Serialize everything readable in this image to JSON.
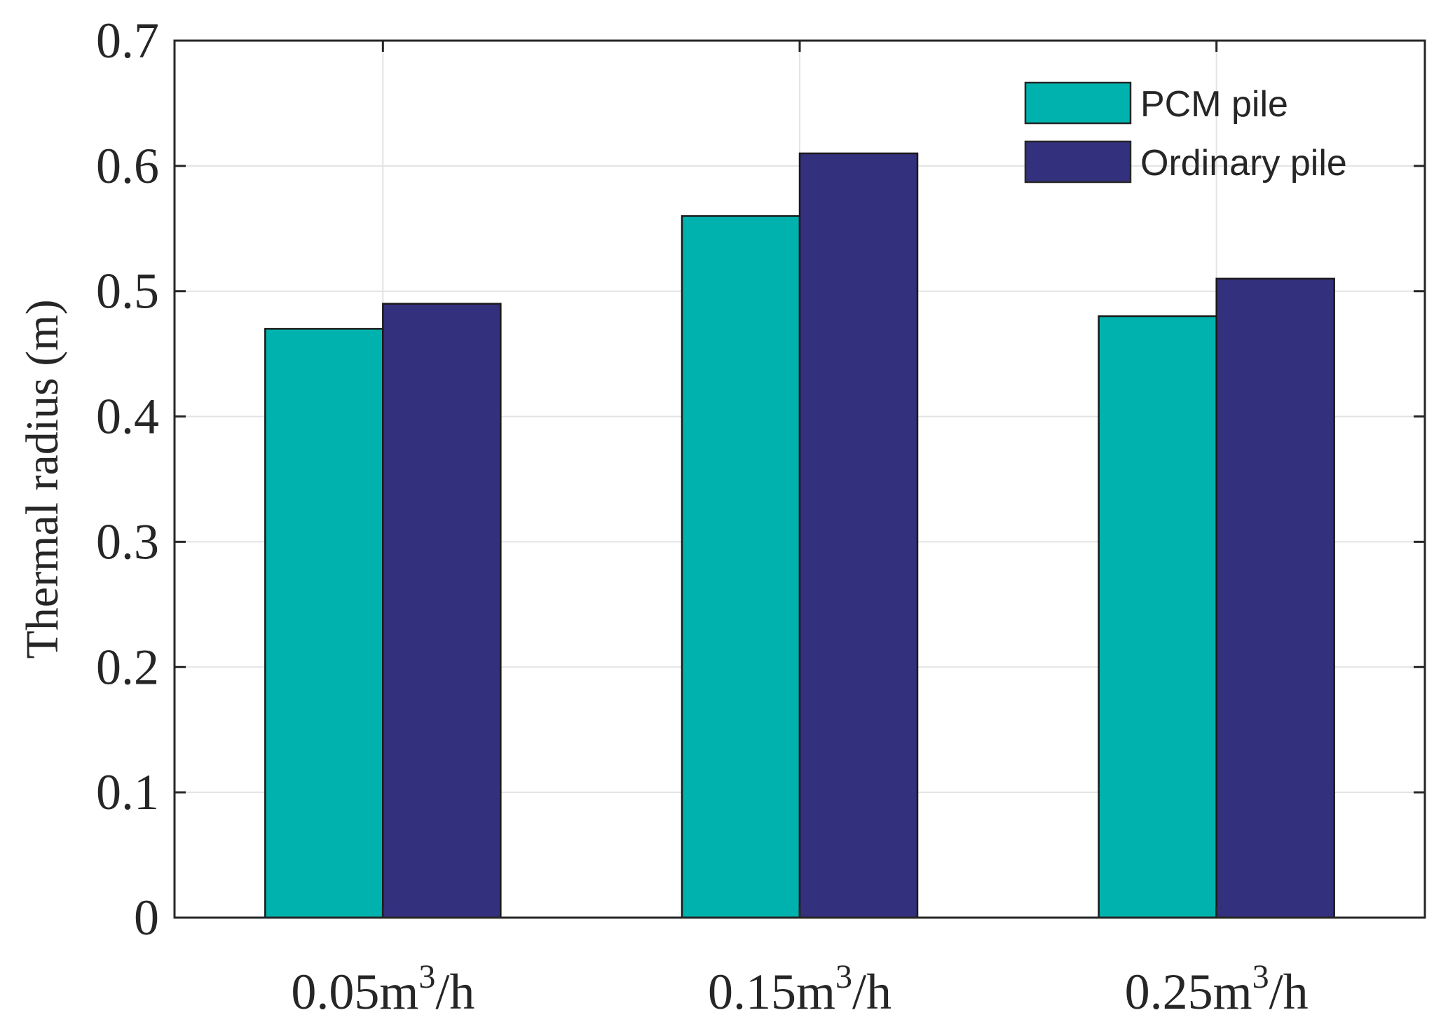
{
  "chart_data": {
    "type": "bar",
    "categories": [
      {
        "main": "0.05m",
        "sup": "3",
        "tail": "/h"
      },
      {
        "main": "0.15m",
        "sup": "3",
        "tail": "/h"
      },
      {
        "main": "0.25m",
        "sup": "3",
        "tail": "/h"
      }
    ],
    "series": [
      {
        "name": "PCM pile",
        "color": "#00b2ae",
        "values": [
          0.47,
          0.56,
          0.48
        ]
      },
      {
        "name": "Ordinary pile",
        "color": "#33307d",
        "values": [
          0.49,
          0.61,
          0.51
        ]
      }
    ],
    "ylabel": "Thermal radius (m)",
    "ylim": [
      0,
      0.7
    ],
    "yticks": [
      "0",
      "0.1",
      "0.2",
      "0.3",
      "0.4",
      "0.5",
      "0.6",
      "0.7"
    ],
    "grid": true,
    "legend_position": "top-right"
  }
}
